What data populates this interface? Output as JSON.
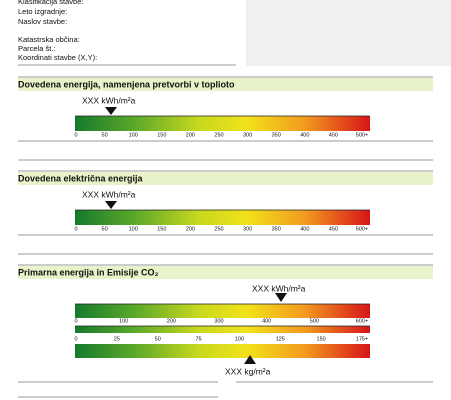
{
  "building_info": [
    "Klasifikacija stavbe:",
    "Leto izgradnje:",
    "Naslov stavbe:",
    "Katastrska občina:",
    "Parcela št.:",
    "Koordinati stavbe (X,Y):"
  ],
  "sections": [
    {
      "title": "Dovedena energija, namenjena pretvorbi v toplioto",
      "marker_label": "XXX kWh/m²a",
      "scales": [
        [
          "0",
          "50",
          "100",
          "150",
          "200",
          "250",
          "300",
          "350",
          "400",
          "450",
          "500+"
        ]
      ]
    },
    {
      "title": "Dovedena električna energija",
      "marker_label": "XXX kWh/m²a",
      "scales": [
        [
          "0",
          "50",
          "100",
          "150",
          "200",
          "250",
          "300",
          "350",
          "400",
          "450",
          "500+"
        ]
      ]
    },
    {
      "title": "Primarna energija in Emisije CO₂",
      "marker_label": "XXX kWh/m²a",
      "scales": [
        [
          "0",
          "100",
          "200",
          "300",
          "400",
          "500",
          "600+"
        ],
        [
          "0",
          "25",
          "50",
          "75",
          "100",
          "125",
          "150",
          "175+"
        ]
      ],
      "marker_label_2": "XXX kg/m²a"
    }
  ]
}
